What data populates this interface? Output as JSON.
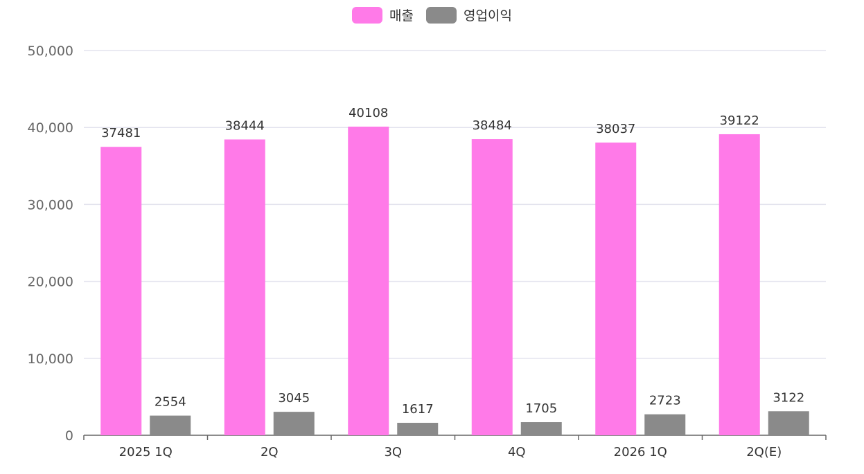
{
  "legend": {
    "items": [
      {
        "label": "매출",
        "color": "#ff7ae8"
      },
      {
        "label": "영업이익",
        "color": "#8a8a8a"
      }
    ]
  },
  "chart_data": {
    "type": "bar",
    "categories": [
      "2025 1Q",
      "2Q",
      "3Q",
      "4Q",
      "2026 1Q",
      "2Q(E)"
    ],
    "series": [
      {
        "name": "매출",
        "color": "#ff7ae8",
        "values": [
          37481,
          38444,
          40108,
          38484,
          38037,
          39122
        ]
      },
      {
        "name": "영업이익",
        "color": "#8a8a8a",
        "values": [
          2554,
          3045,
          1617,
          1705,
          2723,
          3122
        ]
      }
    ],
    "ylim": [
      0,
      50000
    ],
    "yticks": [
      "0",
      "10,000",
      "20,000",
      "30,000",
      "40,000",
      "50,000"
    ],
    "ytick_values": [
      0,
      10000,
      20000,
      30000,
      40000,
      50000
    ],
    "grid": true,
    "legend_position": "top-center",
    "title": "",
    "xlabel": "",
    "ylabel": ""
  }
}
